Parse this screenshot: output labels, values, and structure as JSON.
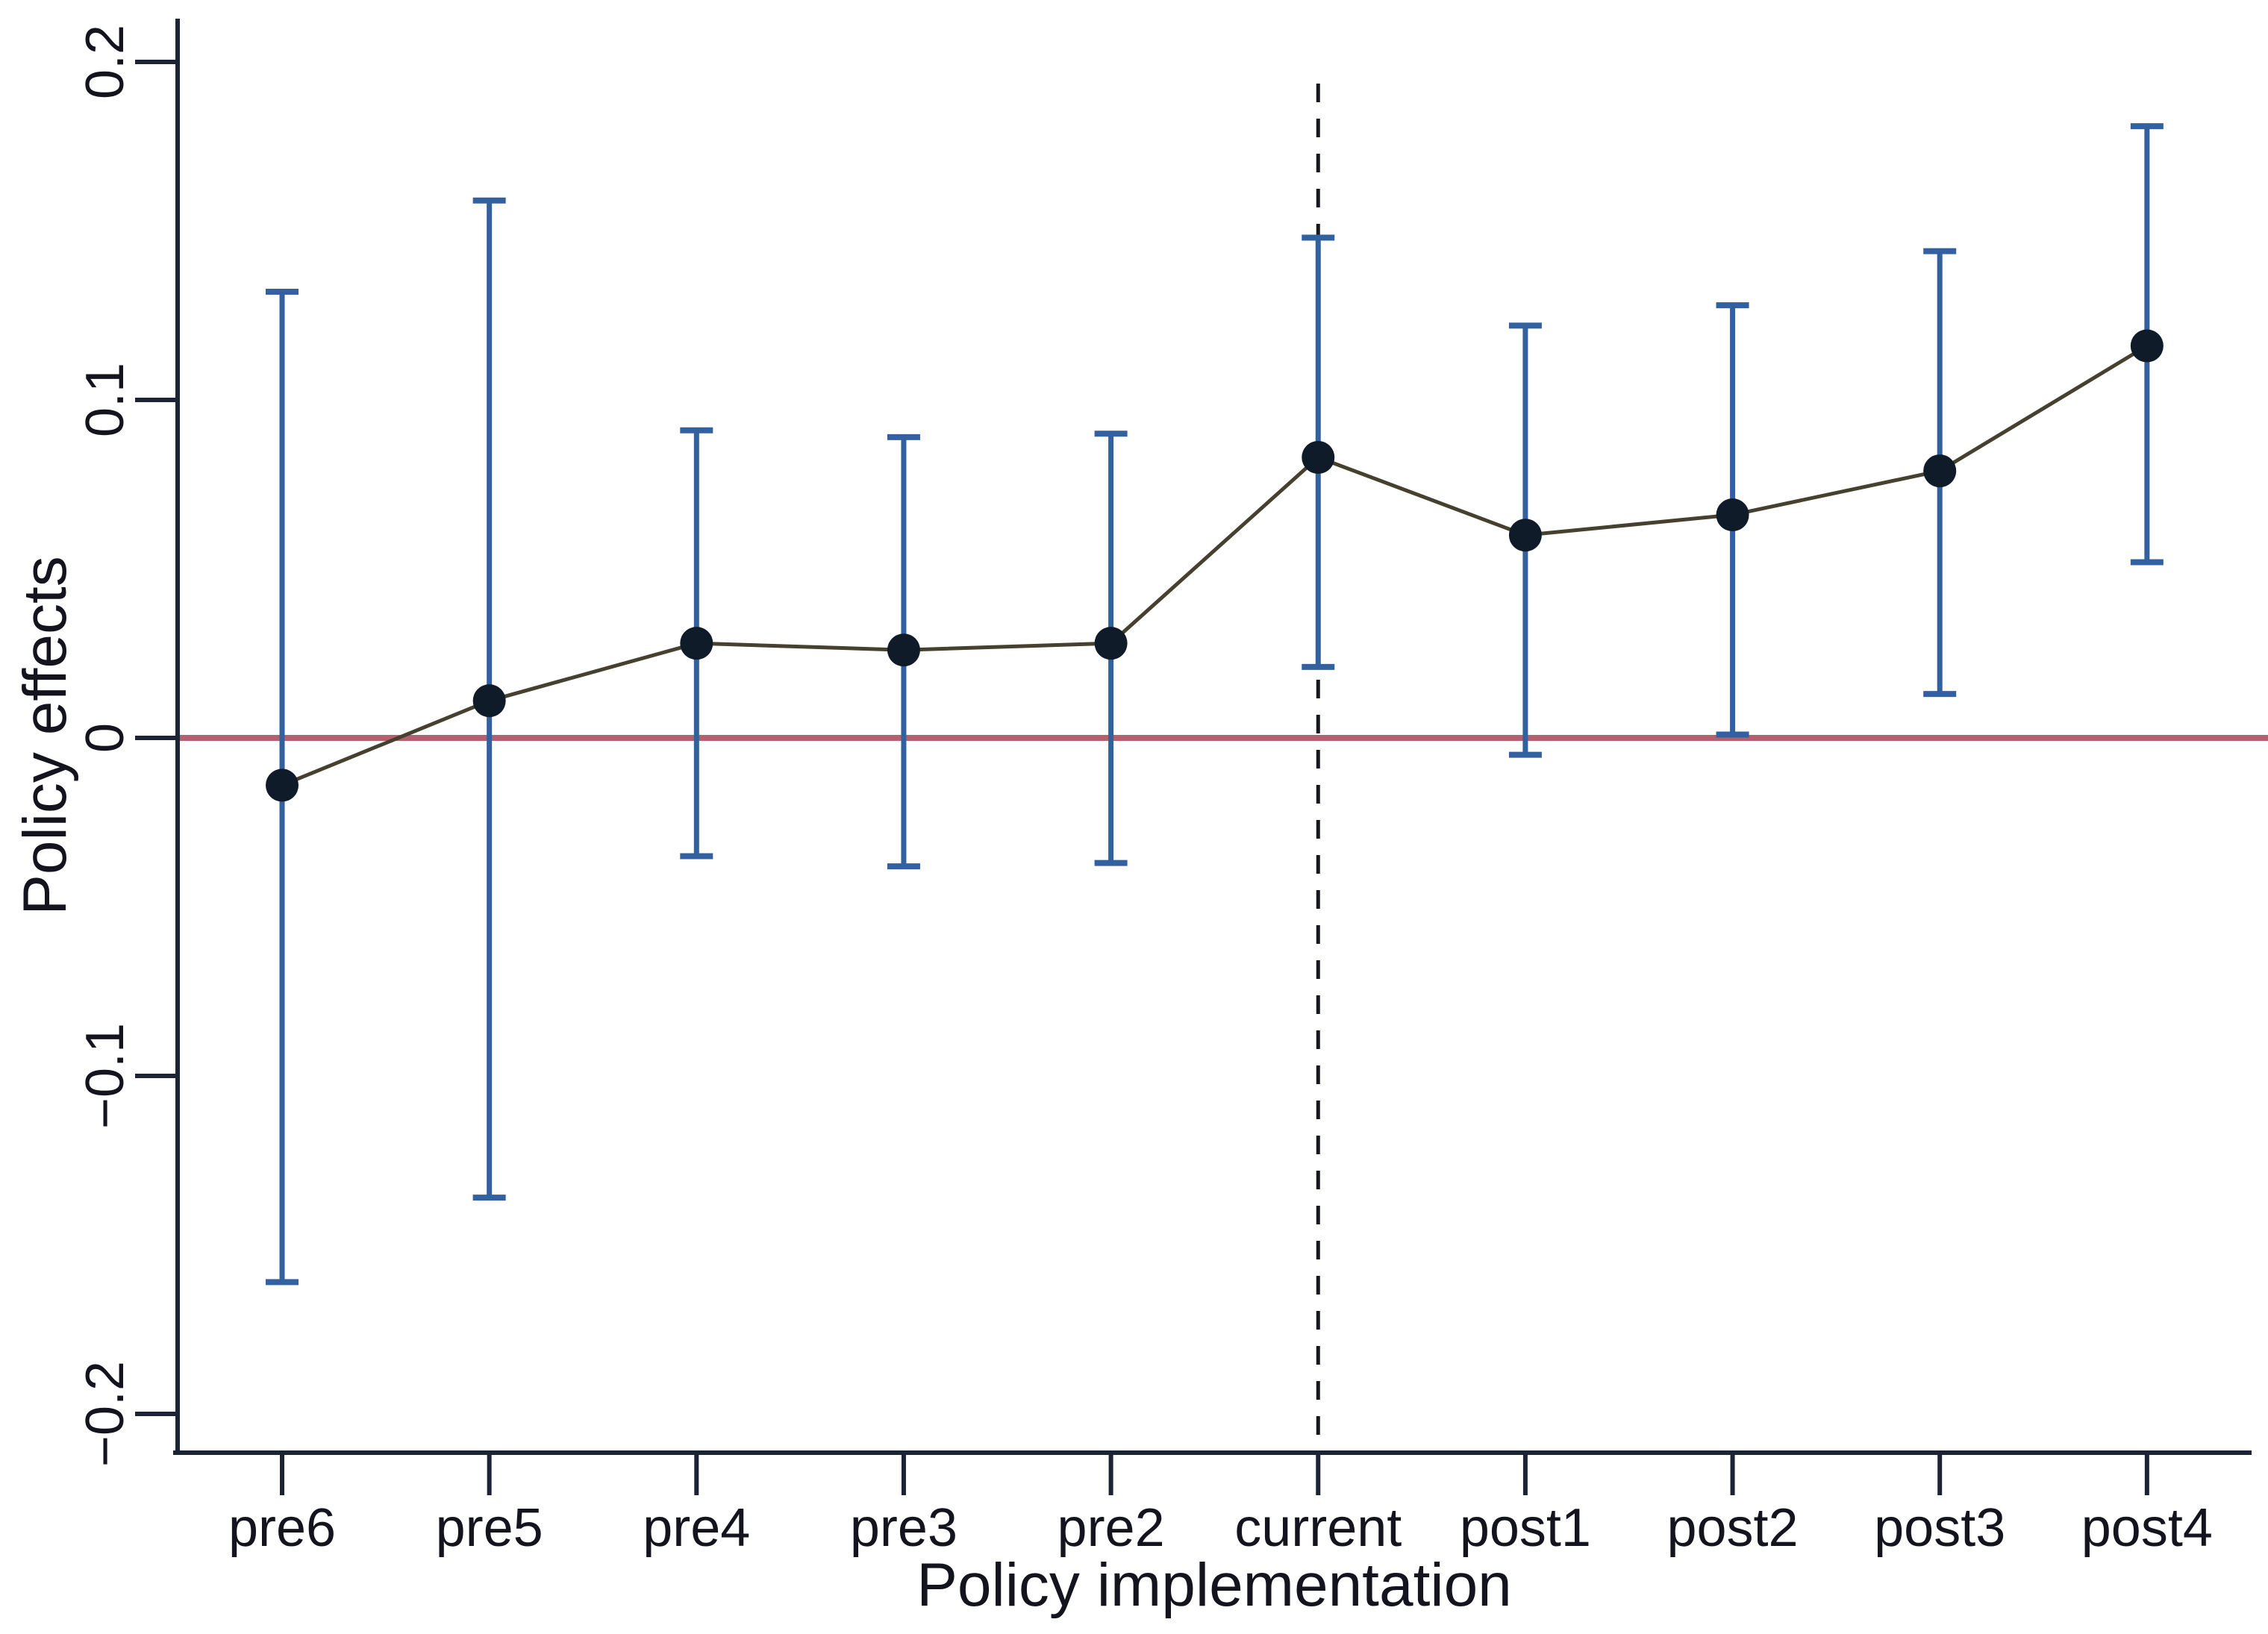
{
  "figure": {
    "kind": "event-study errorbar plot",
    "background": "#ffffff"
  },
  "chart_data": {
    "type": "line",
    "title": "",
    "xlabel": "Policy implementation",
    "ylabel": "Policy effects",
    "categories": [
      "pre6",
      "pre5",
      "pre4",
      "pre3",
      "pre2",
      "current",
      "post1",
      "post2",
      "post3",
      "post4"
    ],
    "series": [
      {
        "name": "Policy effects",
        "values": [
          -0.014,
          0.011,
          0.028,
          0.026,
          0.028,
          0.083,
          0.06,
          0.066,
          0.079,
          0.116
        ],
        "ci_low": [
          -0.161,
          -0.136,
          -0.035,
          -0.038,
          -0.037,
          0.021,
          -0.005,
          0.001,
          0.013,
          0.052
        ],
        "ci_high": [
          0.132,
          0.159,
          0.091,
          0.089,
          0.09,
          0.148,
          0.122,
          0.128,
          0.144,
          0.181
        ]
      }
    ],
    "yticks": [
      0.2,
      0.1,
      0,
      -0.1,
      -0.2
    ],
    "ytick_labels": [
      "0.2",
      "0.1",
      "0",
      "−0.1",
      "−0.2"
    ],
    "ylim": [
      -0.212,
      0.213
    ],
    "reference_line_y": 0,
    "vline_at_category": "current",
    "grid": false,
    "legend": "none",
    "colors": {
      "axis": "#1c2335",
      "error_bar": "#33609e",
      "marker": "#0f1b28",
      "connector": "#46402f",
      "zero_line": "#a03c4c",
      "event_line": "#16161e",
      "text": "#14141f"
    }
  }
}
